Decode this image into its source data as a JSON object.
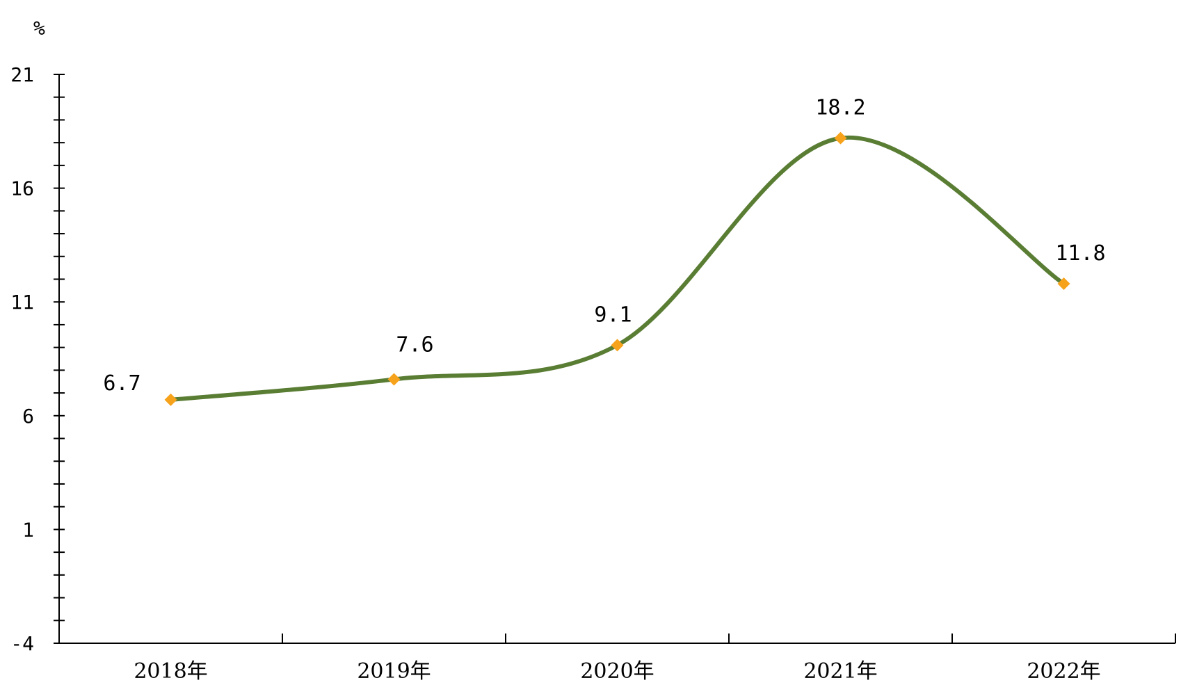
{
  "chart_data": {
    "type": "line",
    "unit_label": "%",
    "categories": [
      "2018年",
      "2019年",
      "2020年",
      "2021年",
      "2022年"
    ],
    "series": [
      {
        "values": [
          6.7,
          7.6,
          9.1,
          18.2,
          11.8
        ]
      }
    ],
    "data_labels": [
      "6.7",
      "7.6",
      "9.1",
      "18.2",
      "11.8"
    ],
    "y_ticks": [
      -4,
      1,
      6,
      11,
      16,
      21
    ],
    "y_tick_labels": [
      "-4",
      "1",
      "6",
      "11",
      "16",
      "21"
    ],
    "ylim": [
      -4,
      21
    ],
    "y_minor_step": 1,
    "grid": false,
    "legend": "none",
    "smooth": true,
    "colors": {
      "line": "#5a7d34",
      "marker": "#f7a21b",
      "axis": "#000000"
    }
  }
}
